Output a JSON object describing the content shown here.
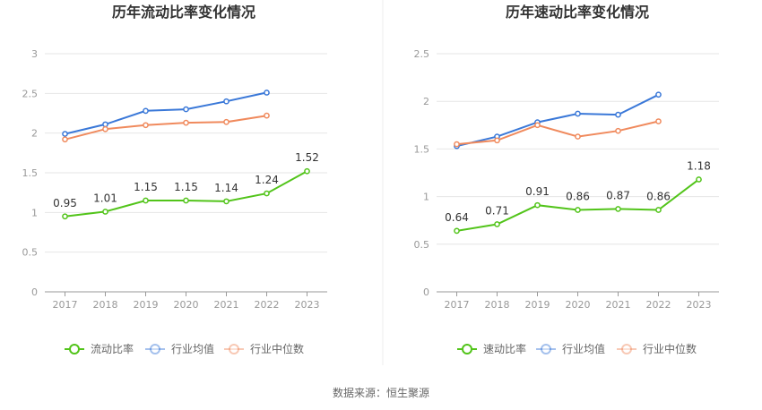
{
  "chart_data": [
    {
      "type": "line",
      "title": "历年流动比率变化情况",
      "categories": [
        "2017",
        "2018",
        "2019",
        "2020",
        "2021",
        "2022",
        "2023"
      ],
      "ylim": [
        0,
        3
      ],
      "yticks": [
        "0",
        "0.5",
        "1",
        "1.5",
        "2",
        "2.5",
        "3"
      ],
      "grid": true,
      "legend_position": "bottom",
      "series": [
        {
          "name": "流动比率",
          "color": "#52c41a",
          "labeled": true,
          "values": [
            0.95,
            1.01,
            1.15,
            1.15,
            1.14,
            1.24,
            1.52
          ],
          "labels": [
            "0.95",
            "1.01",
            "1.15",
            "1.15",
            "1.14",
            "1.24",
            "1.52"
          ]
        },
        {
          "name": "行业均值",
          "color": "#3a78d8",
          "labeled": false,
          "values": [
            1.99,
            2.11,
            2.28,
            2.3,
            2.4,
            2.51,
            null
          ]
        },
        {
          "name": "行业中位数",
          "color": "#f08a5d",
          "labeled": false,
          "values": [
            1.92,
            2.05,
            2.1,
            2.13,
            2.14,
            2.22,
            null
          ]
        }
      ]
    },
    {
      "type": "line",
      "title": "历年速动比率变化情况",
      "categories": [
        "2017",
        "2018",
        "2019",
        "2020",
        "2021",
        "2022",
        "2023"
      ],
      "ylim": [
        0,
        2.5
      ],
      "yticks": [
        "0",
        "0.5",
        "1",
        "1.5",
        "2",
        "2.5"
      ],
      "grid": true,
      "legend_position": "bottom",
      "series": [
        {
          "name": "速动比率",
          "color": "#52c41a",
          "labeled": true,
          "values": [
            0.64,
            0.71,
            0.91,
            0.86,
            0.87,
            0.86,
            1.18
          ],
          "labels": [
            "0.64",
            "0.71",
            "0.91",
            "0.86",
            "0.87",
            "0.86",
            "1.18"
          ]
        },
        {
          "name": "行业均值",
          "color": "#3a78d8",
          "labeled": false,
          "values": [
            1.53,
            1.63,
            1.78,
            1.87,
            1.86,
            2.07,
            null
          ]
        },
        {
          "name": "行业中位数",
          "color": "#f08a5d",
          "labeled": false,
          "values": [
            1.55,
            1.59,
            1.75,
            1.63,
            1.69,
            1.79,
            null
          ]
        }
      ]
    }
  ],
  "footer": {
    "source": "数据来源：恒生聚源"
  }
}
